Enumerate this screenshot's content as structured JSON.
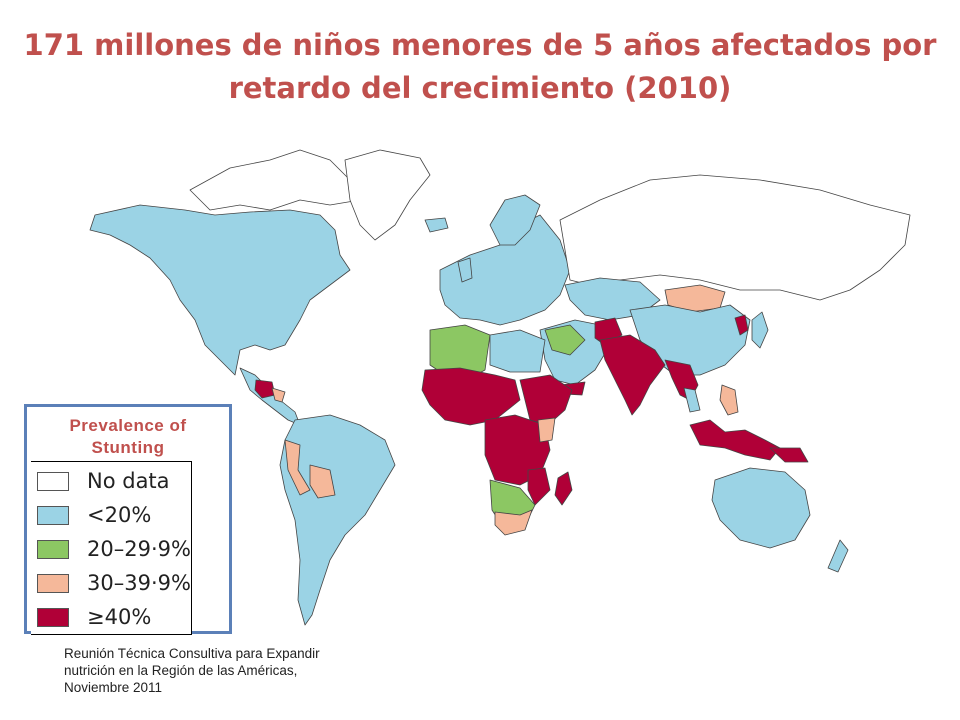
{
  "title": {
    "line1": "171 millones de niños menores de 5 años afectados por",
    "line2": "retardo del crecimiento (2010)"
  },
  "legend": {
    "title_line1": "Prevalence of",
    "title_line2": "Stunting",
    "items": [
      {
        "label": "No data",
        "color": "#ffffff"
      },
      {
        "label": "<20%",
        "color": "#9bd3e5"
      },
      {
        "label": "20–29·9%",
        "color": "#8cc763"
      },
      {
        "label": "30–39·9%",
        "color": "#f5b89a"
      },
      {
        "label": "≥40%",
        "color": "#b00037"
      }
    ]
  },
  "source": {
    "line1": "Reunión Técnica Consultiva para Expandir",
    "line2": "nutrición en la Región de las Américas,",
    "line3": "Noviembre 2011"
  },
  "colors": {
    "title": "#c0504d",
    "border": "#5b80b8",
    "stroke": "#444444"
  }
}
